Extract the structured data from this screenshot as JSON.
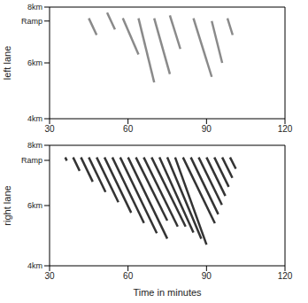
{
  "chart_data": [
    {
      "type": "line",
      "ylabel": "left lane",
      "xlim": [
        30,
        120
      ],
      "xticks": [
        30,
        60,
        90,
        120
      ],
      "ylim": [
        4,
        8
      ],
      "yticks": [
        {
          "value": 4,
          "label": "4km"
        },
        {
          "value": 6,
          "label": "6km"
        },
        {
          "value": 7.5,
          "label": "Ramp"
        },
        {
          "value": 8,
          "label": "8km"
        }
      ],
      "color": "#8a8a8a",
      "waves": [
        {
          "x": [
            45,
            48
          ],
          "y": [
            7.6,
            7.0
          ]
        },
        {
          "x": [
            52,
            55
          ],
          "y": [
            7.8,
            7.2
          ]
        },
        {
          "x": [
            58,
            64
          ],
          "y": [
            7.6,
            6.3
          ]
        },
        {
          "x": [
            64,
            70
          ],
          "y": [
            7.6,
            5.3
          ]
        },
        {
          "x": [
            70,
            76
          ],
          "y": [
            7.6,
            5.6
          ]
        },
        {
          "x": [
            76,
            80
          ],
          "y": [
            7.7,
            6.5
          ]
        },
        {
          "x": [
            85,
            92
          ],
          "y": [
            7.6,
            5.5
          ]
        },
        {
          "x": [
            92,
            96
          ],
          "y": [
            7.5,
            6.0
          ]
        },
        {
          "x": [
            98,
            100
          ],
          "y": [
            7.6,
            7.0
          ]
        }
      ]
    },
    {
      "type": "line",
      "ylabel": "right lane",
      "xlabel": "Time in minutes",
      "xlim": [
        30,
        120
      ],
      "xticks": [
        30,
        60,
        90,
        120
      ],
      "ylim": [
        4,
        8
      ],
      "yticks": [
        {
          "value": 4,
          "label": "4km"
        },
        {
          "value": 6,
          "label": "6km"
        },
        {
          "value": 7.5,
          "label": "Ramp"
        },
        {
          "value": 8,
          "label": "8km"
        }
      ],
      "color": "#333333",
      "waves": [
        {
          "x": [
            36,
            36.6
          ],
          "y": [
            7.6,
            7.49
          ]
        },
        {
          "x": [
            39,
            41.5
          ],
          "y": [
            7.6,
            7.15
          ]
        },
        {
          "x": [
            42,
            46.5
          ],
          "y": [
            7.6,
            6.79
          ]
        },
        {
          "x": [
            45,
            51.4
          ],
          "y": [
            7.6,
            6.45
          ]
        },
        {
          "x": [
            48,
            56.3
          ],
          "y": [
            7.6,
            6.11
          ]
        },
        {
          "x": [
            51,
            61.2
          ],
          "y": [
            7.6,
            5.76
          ]
        },
        {
          "x": [
            54,
            66.1
          ],
          "y": [
            7.6,
            5.42
          ]
        },
        {
          "x": [
            57,
            71
          ],
          "y": [
            7.6,
            5.08
          ]
        },
        {
          "x": [
            60,
            75
          ],
          "y": [
            7.6,
            4.9
          ]
        },
        {
          "x": [
            63,
            75
          ],
          "y": [
            7.6,
            5.5
          ]
        },
        {
          "x": [
            66,
            79
          ],
          "y": [
            7.6,
            5.3
          ]
        },
        {
          "x": [
            69,
            82
          ],
          "y": [
            7.6,
            5.3
          ]
        },
        {
          "x": [
            72,
            85
          ],
          "y": [
            7.6,
            5.1
          ]
        },
        {
          "x": [
            75,
            88
          ],
          "y": [
            7.6,
            4.9
          ]
        },
        {
          "x": [
            78,
            90
          ],
          "y": [
            7.6,
            4.7
          ]
        },
        {
          "x": [
            81,
            93.2
          ],
          "y": [
            7.6,
            5.41
          ]
        },
        {
          "x": [
            84,
            94.5
          ],
          "y": [
            7.6,
            5.71
          ]
        },
        {
          "x": [
            87,
            95.9
          ],
          "y": [
            7.6,
            6.02
          ]
        },
        {
          "x": [
            90,
            97.2
          ],
          "y": [
            7.6,
            6.32
          ]
        },
        {
          "x": [
            93,
            98.5
          ],
          "y": [
            7.6,
            6.62
          ]
        },
        {
          "x": [
            96,
            99.9
          ],
          "y": [
            7.6,
            6.92
          ]
        },
        {
          "x": [
            99,
            101.2
          ],
          "y": [
            7.6,
            7.22
          ]
        }
      ]
    }
  ]
}
